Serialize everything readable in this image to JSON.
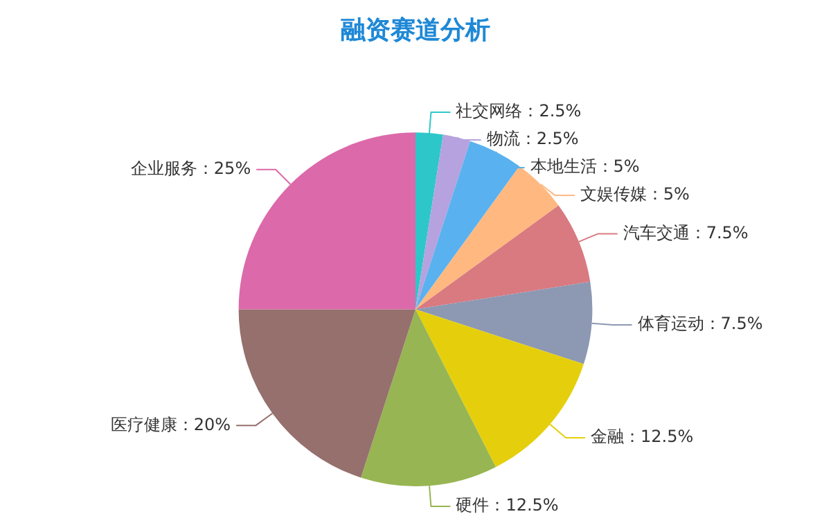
{
  "chart_data": {
    "type": "pie",
    "title": "融资赛道分析",
    "categories": [
      "社交网络",
      "物流",
      "本地生活",
      "文娱传媒",
      "汽车交通",
      "体育运动",
      "金融",
      "硬件",
      "医疗健康",
      "企业服务"
    ],
    "values": [
      2.5,
      2.5,
      5,
      5,
      7.5,
      7.5,
      12.5,
      12.5,
      20,
      25
    ],
    "value_labels": [
      "：2.5%",
      "：2.5%",
      "：5%",
      "：5%",
      "：7.5%",
      "：7.5%",
      "：12.5%",
      "：12.5%",
      "：20%",
      "：25%"
    ],
    "colors": [
      "#2ec7c9",
      "#b6a2de",
      "#5ab1ef",
      "#ffb980",
      "#d87a80",
      "#8d98b3",
      "#e5cf0d",
      "#97b552",
      "#95706d",
      "#dc69aa"
    ]
  }
}
